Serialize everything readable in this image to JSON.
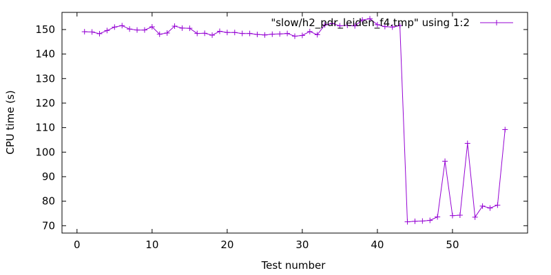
{
  "chart_data": {
    "type": "line",
    "title": "",
    "xlabel": "Test number",
    "ylabel": "CPU time (s)",
    "xlim": [
      -2,
      60
    ],
    "ylim": [
      67,
      157
    ],
    "xticks": [
      0,
      10,
      20,
      30,
      40,
      50
    ],
    "yticks": [
      70,
      80,
      90,
      100,
      110,
      120,
      130,
      140,
      150
    ],
    "grid": false,
    "legend_position": "top-right",
    "marker": "plus",
    "series": [
      {
        "name": "\"slow/h2_pdr_leiden_f4.tmp\" using 1:2",
        "color": "#9400d3",
        "x": [
          1,
          2,
          3,
          4,
          5,
          6,
          7,
          8,
          9,
          10,
          11,
          12,
          13,
          14,
          15,
          16,
          17,
          18,
          19,
          20,
          21,
          22,
          23,
          24,
          25,
          26,
          27,
          28,
          29,
          30,
          31,
          32,
          33,
          34,
          35,
          36,
          37,
          38,
          39,
          40,
          41,
          42,
          43,
          44,
          45,
          46,
          47,
          48,
          49,
          50,
          51,
          52,
          53,
          54,
          55,
          56,
          57
        ],
        "y": [
          149.1,
          149.0,
          148.3,
          149.6,
          151.0,
          151.6,
          150.2,
          149.8,
          149.8,
          151.1,
          148.1,
          148.6,
          151.4,
          150.6,
          150.5,
          148.4,
          148.5,
          147.7,
          149.3,
          148.8,
          148.8,
          148.4,
          148.4,
          148.0,
          147.8,
          148.1,
          148.2,
          148.4,
          147.3,
          147.6,
          149.2,
          147.9,
          151.9,
          152.5,
          151.5,
          151.7,
          151.5,
          153.9,
          154.4,
          152.0,
          151.2,
          151.0,
          151.6,
          71.6,
          71.8,
          71.9,
          72.2,
          73.6,
          96.3,
          74.1,
          74.3,
          103.6,
          73.5,
          78.0,
          77.2,
          78.4,
          109.2
        ]
      }
    ]
  }
}
